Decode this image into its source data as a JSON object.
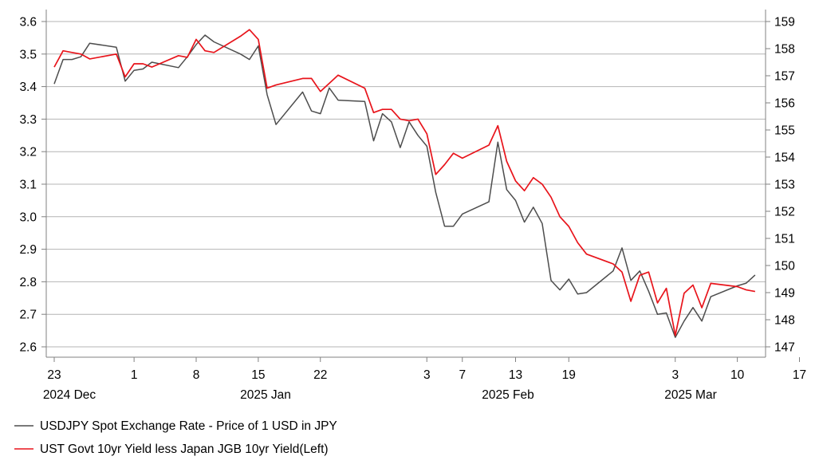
{
  "chart_data": {
    "type": "line",
    "y_left": {
      "min": 2.6,
      "max": 3.6,
      "ticks": [
        "3.6",
        "3.5",
        "3.4",
        "3.3",
        "3.2",
        "3.1",
        "3.0",
        "2.9",
        "2.8",
        "2.7",
        "2.6"
      ]
    },
    "y_right": {
      "min": 147,
      "max": 159,
      "ticks": [
        "159",
        "158",
        "157",
        "156",
        "155",
        "154",
        "153",
        "152",
        "151",
        "150",
        "149",
        "148",
        "147"
      ]
    },
    "x_day_ticks": [
      "23",
      "1",
      "8",
      "15",
      "22",
      "3",
      "7",
      "13",
      "19",
      "3",
      "10",
      "17"
    ],
    "x_period_labels": [
      "2024 Dec",
      "2025 Jan",
      "2025 Feb",
      "2025 Mar"
    ],
    "grid": true,
    "legend_position": "bottom-left",
    "series": [
      {
        "name": "USDJPY Spot Exchange Rate - Price of 1 USD in JPY",
        "axis": "right",
        "color": "#4d4d4d",
        "points": [
          [
            "2024-12-23",
            156.7
          ],
          [
            "2024-12-24",
            157.6
          ],
          [
            "2024-12-25",
            157.6
          ],
          [
            "2024-12-26",
            157.7
          ],
          [
            "2024-12-27",
            158.2
          ],
          [
            "2024-12-30",
            158.05
          ],
          [
            "2024-12-31",
            156.8
          ],
          [
            "2025-01-01",
            157.2
          ],
          [
            "2025-01-02",
            157.25
          ],
          [
            "2025-01-03",
            157.5
          ],
          [
            "2025-01-06",
            157.3
          ],
          [
            "2025-01-07",
            157.7
          ],
          [
            "2025-01-08",
            158.15
          ],
          [
            "2025-01-09",
            158.5
          ],
          [
            "2025-01-10",
            158.25
          ],
          [
            "2025-01-13",
            157.8
          ],
          [
            "2025-01-14",
            157.6
          ],
          [
            "2025-01-15",
            158.1
          ],
          [
            "2025-01-16",
            156.3
          ],
          [
            "2025-01-17",
            155.2
          ],
          [
            "2025-01-20",
            156.4
          ],
          [
            "2025-01-21",
            155.7
          ],
          [
            "2025-01-22",
            155.6
          ],
          [
            "2025-01-23",
            156.55
          ],
          [
            "2025-01-24",
            156.1
          ],
          [
            "2025-01-27",
            156.05
          ],
          [
            "2025-01-28",
            154.6
          ],
          [
            "2025-01-29",
            155.6
          ],
          [
            "2025-01-30",
            155.3
          ],
          [
            "2025-01-31",
            154.35
          ],
          [
            "2025-02-01",
            155.3
          ],
          [
            "2025-02-02",
            154.8
          ],
          [
            "2025-02-03",
            154.4
          ],
          [
            "2025-02-04",
            152.7
          ],
          [
            "2025-02-05",
            151.45
          ],
          [
            "2025-02-06",
            151.45
          ],
          [
            "2025-02-07",
            151.9
          ],
          [
            "2025-02-10",
            152.35
          ],
          [
            "2025-02-11",
            154.55
          ],
          [
            "2025-02-12",
            152.8
          ],
          [
            "2025-02-13",
            152.4
          ],
          [
            "2025-02-14",
            151.6
          ],
          [
            "2025-02-15",
            152.15
          ],
          [
            "2025-02-16",
            151.55
          ],
          [
            "2025-02-17",
            149.45
          ],
          [
            "2025-02-18",
            149.1
          ],
          [
            "2025-02-19",
            149.5
          ],
          [
            "2025-02-20",
            148.95
          ],
          [
            "2025-02-21",
            149.0
          ],
          [
            "2025-02-24",
            149.8
          ],
          [
            "2025-02-25",
            150.65
          ],
          [
            "2025-02-26",
            149.45
          ],
          [
            "2025-02-27",
            149.8
          ],
          [
            "2025-02-28",
            149.05
          ],
          [
            "2025-03-01",
            148.2
          ],
          [
            "2025-03-02",
            148.25
          ],
          [
            "2025-03-03",
            147.35
          ],
          [
            "2025-03-04",
            147.95
          ],
          [
            "2025-03-05",
            148.45
          ],
          [
            "2025-03-06",
            147.95
          ],
          [
            "2025-03-07",
            148.85
          ],
          [
            "2025-03-10",
            149.25
          ],
          [
            "2025-03-11",
            149.35
          ],
          [
            "2025-03-12",
            149.65
          ]
        ]
      },
      {
        "name": "UST Govt 10yr Yield less Japan JGB 10yr Yield(Left)",
        "axis": "left",
        "color": "#e8141b",
        "points": [
          [
            "2024-12-23",
            3.46
          ],
          [
            "2024-12-24",
            3.51
          ],
          [
            "2024-12-25",
            3.505
          ],
          [
            "2024-12-26",
            3.5
          ],
          [
            "2024-12-27",
            3.485
          ],
          [
            "2024-12-30",
            3.5
          ],
          [
            "2024-12-31",
            3.43
          ],
          [
            "2025-01-01",
            3.47
          ],
          [
            "2025-01-02",
            3.47
          ],
          [
            "2025-01-03",
            3.46
          ],
          [
            "2025-01-06",
            3.495
          ],
          [
            "2025-01-07",
            3.49
          ],
          [
            "2025-01-08",
            3.545
          ],
          [
            "2025-01-09",
            3.51
          ],
          [
            "2025-01-10",
            3.505
          ],
          [
            "2025-01-13",
            3.555
          ],
          [
            "2025-01-14",
            3.575
          ],
          [
            "2025-01-15",
            3.545
          ],
          [
            "2025-01-16",
            3.395
          ],
          [
            "2025-01-17",
            3.405
          ],
          [
            "2025-01-20",
            3.425
          ],
          [
            "2025-01-21",
            3.425
          ],
          [
            "2025-01-22",
            3.385
          ],
          [
            "2025-01-23",
            3.41
          ],
          [
            "2025-01-24",
            3.435
          ],
          [
            "2025-01-27",
            3.395
          ],
          [
            "2025-01-28",
            3.32
          ],
          [
            "2025-01-29",
            3.33
          ],
          [
            "2025-01-30",
            3.33
          ],
          [
            "2025-01-31",
            3.3
          ],
          [
            "2025-02-01",
            3.295
          ],
          [
            "2025-02-02",
            3.3
          ],
          [
            "2025-02-03",
            3.255
          ],
          [
            "2025-02-04",
            3.13
          ],
          [
            "2025-02-05",
            3.16
          ],
          [
            "2025-02-06",
            3.195
          ],
          [
            "2025-02-07",
            3.18
          ],
          [
            "2025-02-10",
            3.22
          ],
          [
            "2025-02-11",
            3.28
          ],
          [
            "2025-02-12",
            3.17
          ],
          [
            "2025-02-13",
            3.11
          ],
          [
            "2025-02-14",
            3.08
          ],
          [
            "2025-02-15",
            3.12
          ],
          [
            "2025-02-16",
            3.1
          ],
          [
            "2025-02-17",
            3.06
          ],
          [
            "2025-02-18",
            3.0
          ],
          [
            "2025-02-19",
            2.97
          ],
          [
            "2025-02-20",
            2.92
          ],
          [
            "2025-02-21",
            2.885
          ],
          [
            "2025-02-24",
            2.855
          ],
          [
            "2025-02-25",
            2.83
          ],
          [
            "2025-02-26",
            2.74
          ],
          [
            "2025-02-27",
            2.82
          ],
          [
            "2025-02-28",
            2.83
          ],
          [
            "2025-03-01",
            2.735
          ],
          [
            "2025-03-02",
            2.78
          ],
          [
            "2025-03-03",
            2.635
          ],
          [
            "2025-03-04",
            2.765
          ],
          [
            "2025-03-05",
            2.79
          ],
          [
            "2025-03-06",
            2.72
          ],
          [
            "2025-03-07",
            2.795
          ],
          [
            "2025-03-10",
            2.785
          ],
          [
            "2025-03-11",
            2.775
          ],
          [
            "2025-03-12",
            2.77
          ]
        ]
      }
    ]
  }
}
